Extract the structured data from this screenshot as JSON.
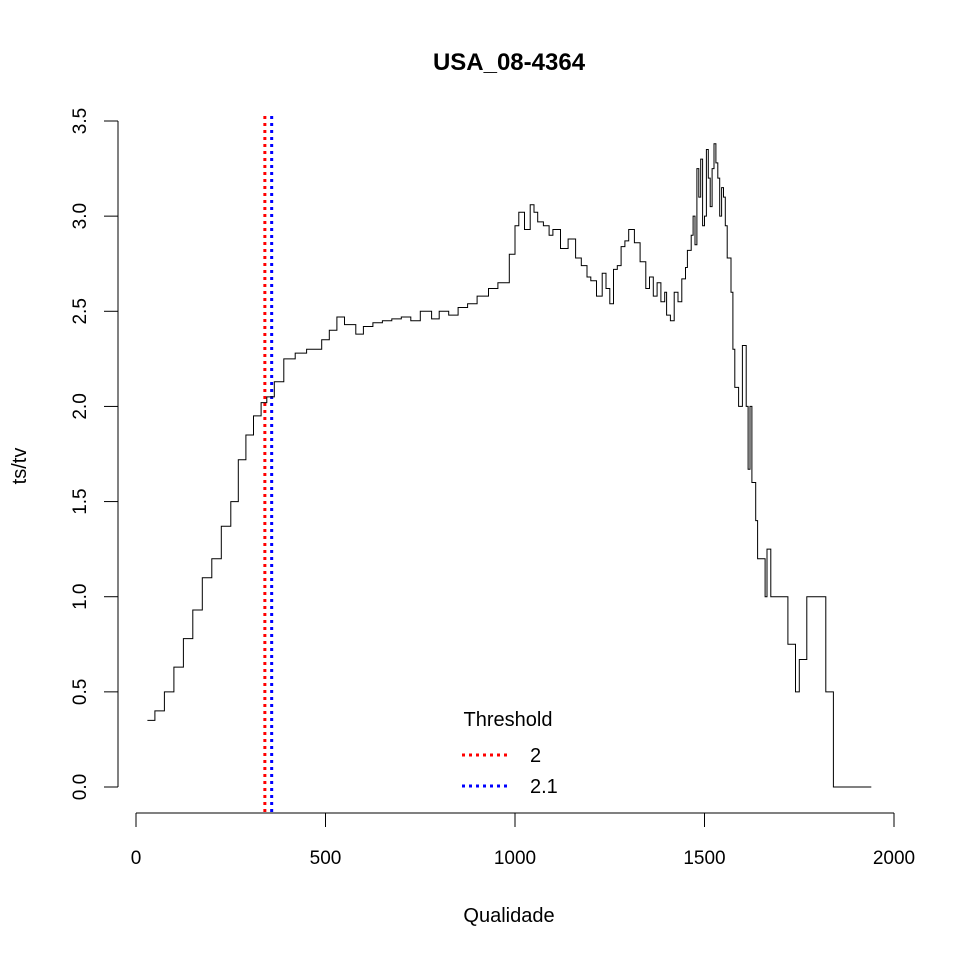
{
  "chart_data": {
    "type": "line",
    "title": "USA_08-4364",
    "xlabel": "Qualidade",
    "ylabel": "ts/tv",
    "xlim": [
      0,
      2000
    ],
    "ylim": [
      0,
      3.5
    ],
    "x_ticks": [
      "0",
      "500",
      "1000",
      "1500",
      "2000"
    ],
    "y_ticks": [
      "0.0",
      "0.5",
      "1.0",
      "1.5",
      "2.0",
      "2.5",
      "3.0",
      "3.5"
    ],
    "series": [
      {
        "color": "#000000",
        "x": [
          30,
          50,
          75,
          100,
          125,
          150,
          175,
          200,
          225,
          250,
          270,
          290,
          310,
          330,
          345,
          365,
          390,
          420,
          450,
          490,
          510,
          530,
          550,
          580,
          600,
          625,
          650,
          675,
          700,
          725,
          750,
          780,
          800,
          825,
          850,
          875,
          900,
          930,
          955,
          985,
          1000,
          1010,
          1025,
          1040,
          1050,
          1060,
          1075,
          1090,
          1100,
          1120,
          1140,
          1160,
          1175,
          1190,
          1200,
          1215,
          1230,
          1240,
          1250,
          1260,
          1270,
          1280,
          1290,
          1300,
          1315,
          1330,
          1345,
          1355,
          1365,
          1375,
          1385,
          1395,
          1400,
          1410,
          1420,
          1430,
          1440,
          1450,
          1455,
          1465,
          1470,
          1475,
          1480,
          1485,
          1490,
          1495,
          1500,
          1505,
          1510,
          1515,
          1520,
          1525,
          1530,
          1535,
          1540,
          1545,
          1550,
          1555,
          1560,
          1570,
          1575,
          1580,
          1590,
          1595,
          1600,
          1610,
          1615,
          1620,
          1625,
          1630,
          1635,
          1640,
          1650,
          1660,
          1665,
          1675,
          1680,
          1690,
          1700,
          1710,
          1720,
          1730,
          1740,
          1750,
          1760,
          1770,
          1780,
          1785,
          1790,
          1795,
          1800,
          1810,
          1820,
          1830,
          1840,
          1850,
          1860,
          1865,
          1870,
          1880,
          1885,
          1890,
          1900,
          1910,
          1920,
          1930,
          1940
        ],
        "y": [
          0.35,
          0.4,
          0.5,
          0.63,
          0.78,
          0.93,
          1.1,
          1.2,
          1.37,
          1.5,
          1.72,
          1.85,
          1.95,
          2.02,
          2.05,
          2.13,
          2.25,
          2.28,
          2.3,
          2.35,
          2.4,
          2.47,
          2.43,
          2.38,
          2.42,
          2.44,
          2.45,
          2.46,
          2.47,
          2.45,
          2.5,
          2.46,
          2.5,
          2.48,
          2.52,
          2.54,
          2.58,
          2.62,
          2.65,
          2.8,
          2.95,
          3.02,
          2.93,
          3.06,
          3.02,
          2.97,
          2.95,
          2.9,
          2.93,
          2.83,
          2.88,
          2.78,
          2.74,
          2.68,
          2.66,
          2.58,
          2.7,
          2.62,
          2.54,
          2.72,
          2.74,
          2.84,
          2.87,
          2.93,
          2.86,
          2.76,
          2.62,
          2.68,
          2.58,
          2.65,
          2.55,
          2.6,
          2.48,
          2.45,
          2.6,
          2.55,
          2.67,
          2.73,
          2.82,
          2.9,
          3.0,
          2.85,
          3.25,
          3.1,
          3.3,
          2.95,
          3.0,
          3.35,
          3.2,
          3.05,
          3.25,
          3.38,
          3.28,
          3.2,
          3.0,
          3.15,
          3.1,
          2.95,
          2.78,
          2.6,
          2.3,
          2.1,
          2.0,
          2.0,
          2.32,
          2.0,
          1.67,
          2.0,
          1.6,
          1.6,
          1.4,
          1.2,
          1.2,
          1.0,
          1.25,
          1.0,
          1.0,
          1.0,
          1.0,
          1.0,
          0.75,
          0.75,
          0.5,
          0.67,
          0.67,
          1.0,
          1.0,
          1.0,
          1.0,
          1.0,
          1.0,
          1.0,
          0.5,
          0.5,
          0.0,
          0.0,
          0.0,
          0.0,
          0.0,
          0.0,
          0.0,
          0.0,
          0.0,
          0.0,
          0.0,
          0.0,
          0.0
        ]
      }
    ],
    "vlines": [
      {
        "x": 340,
        "color": "#ff0000",
        "dash": "dotted",
        "label": "2"
      },
      {
        "x": 358,
        "color": "#0000ff",
        "dash": "dotted",
        "label": "2.1"
      }
    ],
    "legend": {
      "title": "Threshold",
      "placement": "bottom-center",
      "items": [
        {
          "label": "2",
          "color": "#ff0000"
        },
        {
          "label": "2.1",
          "color": "#0000ff"
        }
      ]
    }
  }
}
